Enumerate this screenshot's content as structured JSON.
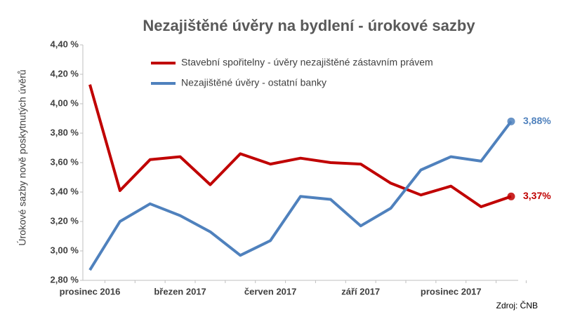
{
  "chart_data": {
    "type": "line",
    "title": "Nezajištěné úvěry na bydlení - úrokové sazby",
    "y_label": "Úrokové sazby nově poskytnutých úvěrů",
    "source": "Zdroj: ČNB",
    "categories": [
      "prosinec 2016",
      null,
      null,
      "březen 2017",
      null,
      null,
      "červen 2017",
      null,
      null,
      "září 2017",
      null,
      null,
      "prosinec 2017",
      null,
      null
    ],
    "series": [
      {
        "name": "Stavební spořitelny - úvěry nezajištěné zástavním právem",
        "color": "#c00000",
        "values": [
          4.13,
          3.41,
          3.62,
          3.64,
          3.45,
          3.66,
          3.59,
          3.63,
          3.6,
          3.59,
          3.46,
          3.38,
          3.44,
          3.3,
          3.37
        ],
        "value_labels": [
          null,
          null,
          null,
          null,
          null,
          null,
          null,
          null,
          null,
          null,
          null,
          null,
          null,
          null,
          "3,37%"
        ]
      },
      {
        "name": "Nezajištěné úvěry - ostatní banky",
        "color": "#4f81bd",
        "values": [
          2.87,
          3.2,
          3.32,
          3.24,
          3.13,
          2.97,
          3.07,
          3.37,
          3.35,
          3.17,
          3.29,
          3.55,
          3.64,
          3.61,
          3.88
        ],
        "value_labels": [
          null,
          null,
          null,
          null,
          null,
          null,
          null,
          null,
          null,
          null,
          null,
          null,
          null,
          null,
          "3,88%"
        ]
      }
    ],
    "ylim": [
      2.8,
      4.4
    ],
    "yticks": [
      {
        "value": 2.8,
        "label": "2,80 %"
      },
      {
        "value": 3.0,
        "label": "3,00 %"
      },
      {
        "value": 3.2,
        "label": "3,20 %"
      },
      {
        "value": 3.4,
        "label": "3,40 %"
      },
      {
        "value": 3.6,
        "label": "3,60 %"
      },
      {
        "value": 3.8,
        "label": "3,80 %"
      },
      {
        "value": 4.0,
        "label": "4,00 %"
      },
      {
        "value": 4.2,
        "label": "4,20 %"
      },
      {
        "value": 4.4,
        "label": "4,40 %"
      }
    ],
    "grid": false
  }
}
